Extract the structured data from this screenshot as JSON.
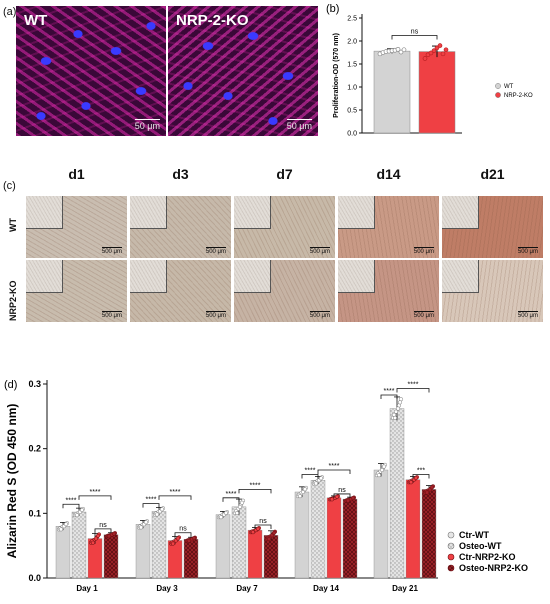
{
  "panels": {
    "a": {
      "label": "(a)",
      "images": [
        {
          "tag": "WT",
          "scale": "50 μm"
        },
        {
          "tag": "NRP-2-KO",
          "scale": "50 μm"
        }
      ]
    },
    "c": {
      "label": "(c)",
      "days": [
        "d1",
        "d3",
        "d7",
        "d14",
        "d21"
      ],
      "rows": [
        "WT",
        "NRP2-KO"
      ],
      "scale": "500 μm"
    }
  },
  "chart_data": [
    {
      "panel": "(b)",
      "type": "bar",
      "ylabel": "Proliferation-OD (570 nm)",
      "ylim": [
        0,
        2.5
      ],
      "yticks": [
        "0.0",
        "0.5",
        "1.0",
        "1.5",
        "2.0",
        "2.5"
      ],
      "series": [
        {
          "name": "WT",
          "value": 1.78,
          "error": 0.05,
          "color": "#d3d3d3",
          "points": [
            1.72,
            1.75,
            1.77,
            1.78,
            1.79,
            1.8,
            1.82,
            1.76,
            1.81
          ]
        },
        {
          "name": "NRP-2-KO",
          "value": 1.77,
          "error": 0.12,
          "color": "#ef4044",
          "points": [
            1.62,
            1.7,
            1.74,
            1.79,
            1.85,
            1.9,
            1.72,
            1.81
          ]
        }
      ],
      "annotations": [
        "ns"
      ],
      "legend": {
        "placement": "bottom-right",
        "entries": [
          "WT",
          "NRP-2-KO"
        ]
      }
    },
    {
      "panel": "(d)",
      "label": "(d)",
      "type": "bar",
      "ylabel": "Alizarin Red S (OD 450 nm)",
      "ylim": [
        0,
        0.3
      ],
      "yticks": [
        "0.0",
        "0.1",
        "0.2",
        "0.3"
      ],
      "categories": [
        "Day 1",
        "Day 3",
        "Day 7",
        "Day 14",
        "Day 21"
      ],
      "series": [
        {
          "name": "Ctr-WT",
          "color": "#d3d3d3",
          "pattern": "solid",
          "values": [
            0.08,
            0.083,
            0.098,
            0.133,
            0.167
          ],
          "errors": [
            0.006,
            0.006,
            0.005,
            0.008,
            0.01
          ]
        },
        {
          "name": "Osteo-WT",
          "color": "#d3d3d3",
          "pattern": "dotted",
          "values": [
            0.102,
            0.103,
            0.11,
            0.151,
            0.262
          ],
          "errors": [
            0.006,
            0.006,
            0.012,
            0.006,
            0.018
          ]
        },
        {
          "name": "Ctr-NRP2-KO",
          "color": "#ef4044",
          "pattern": "solid",
          "values": [
            0.061,
            0.058,
            0.074,
            0.124,
            0.152
          ],
          "errors": [
            0.008,
            0.006,
            0.004,
            0.003,
            0.005
          ]
        },
        {
          "name": "Osteo-NRP2-KO",
          "color": "#a3232a",
          "pattern": "crosshatch",
          "values": [
            0.067,
            0.06,
            0.066,
            0.122,
            0.137
          ],
          "errors": [
            0.003,
            0.003,
            0.007,
            0.003,
            0.006
          ]
        }
      ],
      "significance": [
        {
          "day": 0,
          "pair": [
            0,
            1
          ],
          "text": "****",
          "y": 0.114
        },
        {
          "day": 0,
          "pair": [
            1,
            3
          ],
          "text": "****",
          "y": 0.127
        },
        {
          "day": 0,
          "pair": [
            2,
            3
          ],
          "text": "ns",
          "y": 0.076
        },
        {
          "day": 1,
          "pair": [
            0,
            1
          ],
          "text": "****",
          "y": 0.115
        },
        {
          "day": 1,
          "pair": [
            1,
            3
          ],
          "text": "****",
          "y": 0.127
        },
        {
          "day": 1,
          "pair": [
            2,
            3
          ],
          "text": "ns",
          "y": 0.07
        },
        {
          "day": 2,
          "pair": [
            0,
            1
          ],
          "text": "****",
          "y": 0.124
        },
        {
          "day": 2,
          "pair": [
            1,
            3
          ],
          "text": "****",
          "y": 0.137
        },
        {
          "day": 2,
          "pair": [
            2,
            3
          ],
          "text": "ns",
          "y": 0.082
        },
        {
          "day": 3,
          "pair": [
            0,
            1
          ],
          "text": "****",
          "y": 0.16
        },
        {
          "day": 3,
          "pair": [
            1,
            3
          ],
          "text": "****",
          "y": 0.167
        },
        {
          "day": 3,
          "pair": [
            2,
            3
          ],
          "text": "ns",
          "y": 0.13
        },
        {
          "day": 4,
          "pair": [
            0,
            1
          ],
          "text": "****",
          "y": 0.283
        },
        {
          "day": 4,
          "pair": [
            1,
            3
          ],
          "text": "****",
          "y": 0.293
        },
        {
          "day": 4,
          "pair": [
            2,
            3
          ],
          "text": "***",
          "y": 0.16
        }
      ],
      "legend": {
        "placement": "bottom-right",
        "entries": [
          "Ctr-WT",
          "Osteo-WT",
          "Ctr-NRP2-KO",
          "Osteo-NRP2-KO"
        ]
      }
    }
  ]
}
